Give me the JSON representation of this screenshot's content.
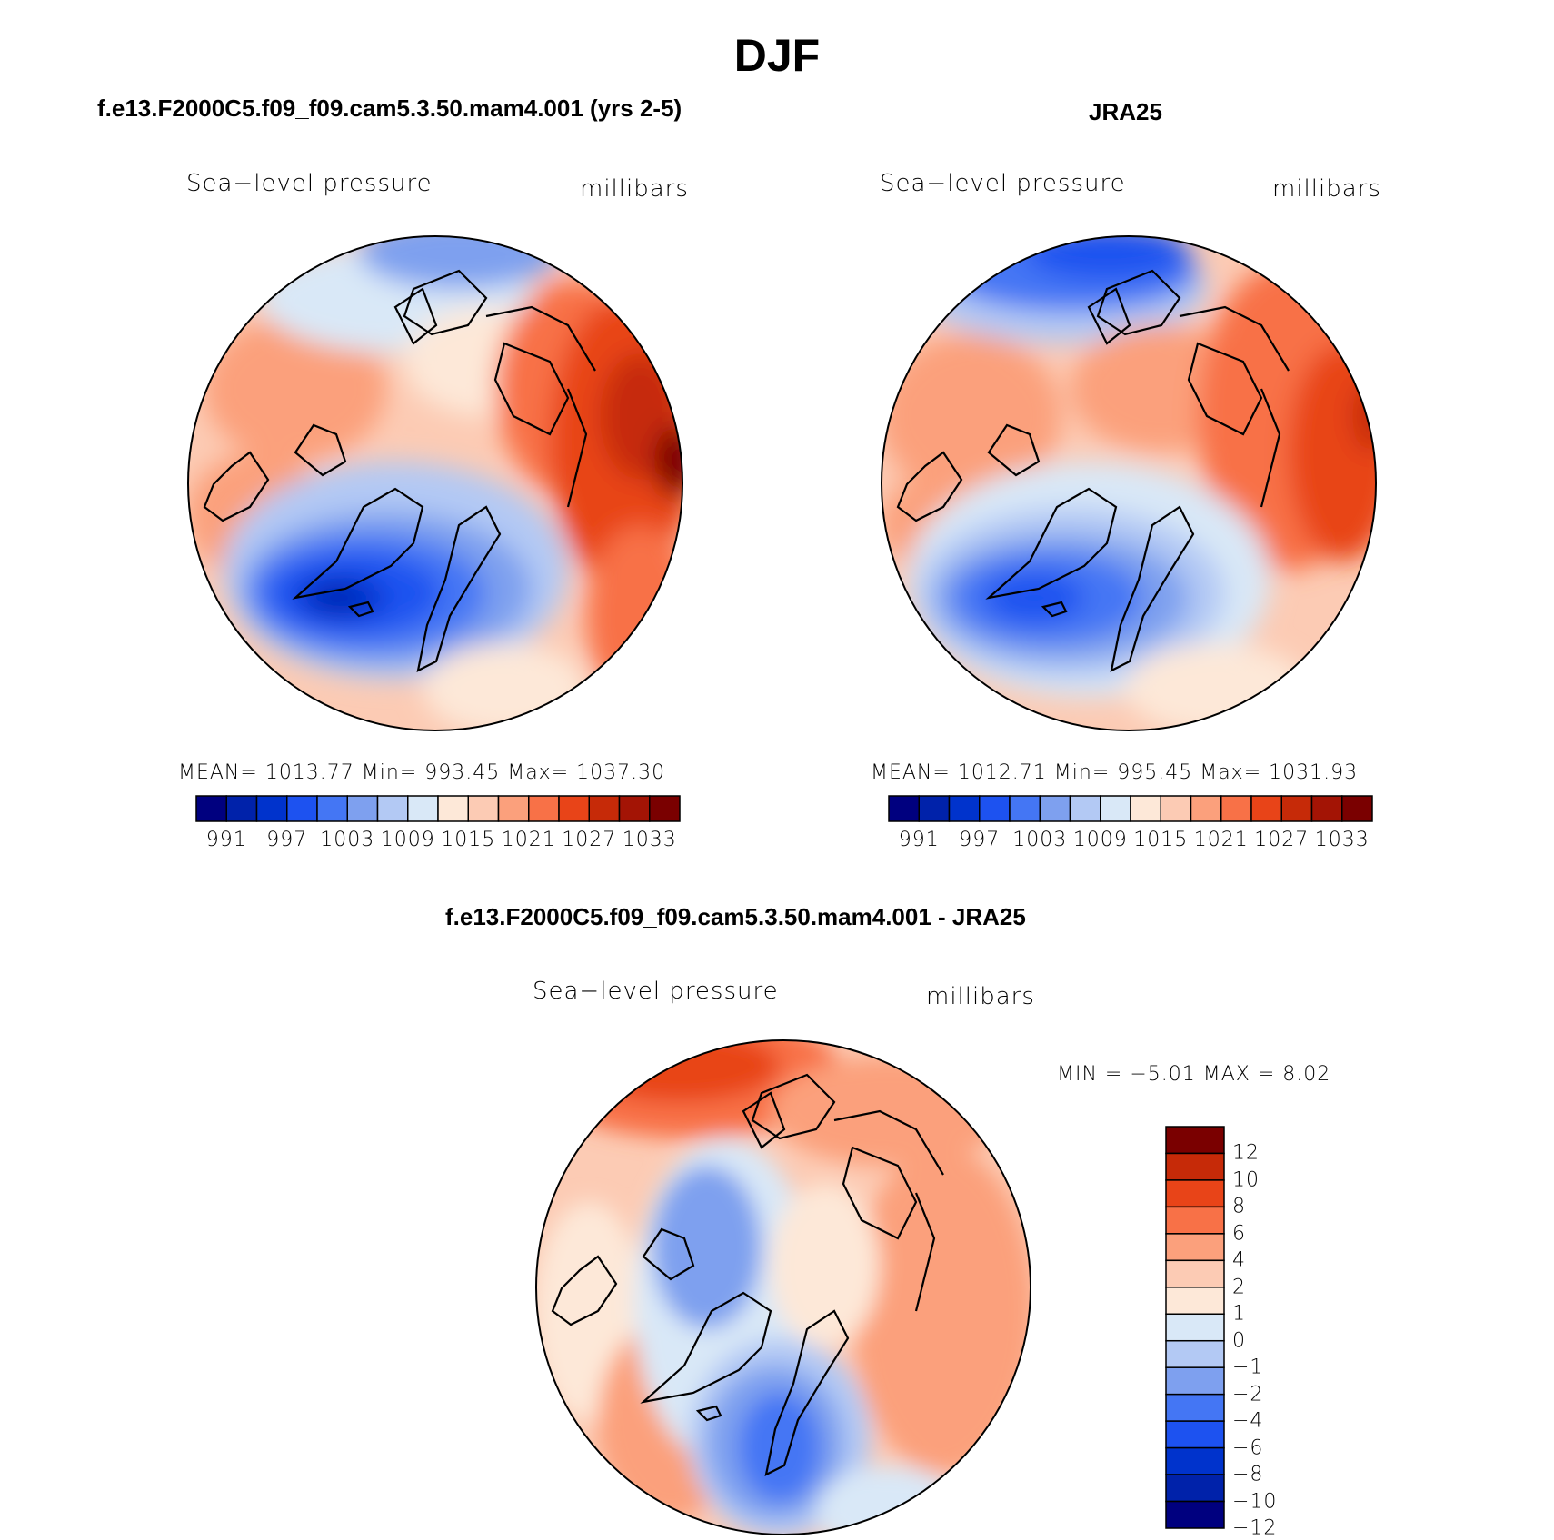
{
  "title": "DJF",
  "colors": {
    "abs_palette": [
      "#00007f",
      "#0022aa",
      "#0033cc",
      "#1d52f0",
      "#4476f4",
      "#7ea0ef",
      "#b3c9f4",
      "#d9e8f7",
      "#fde8d8",
      "#fccbb4",
      "#fba07c",
      "#f87147",
      "#e84418",
      "#c62a08",
      "#a31405",
      "#7a0000"
    ],
    "diff_palette": [
      "#00007f",
      "#0022aa",
      "#0033cc",
      "#1d52f0",
      "#4476f4",
      "#7ea0ef",
      "#b3c9f4",
      "#d9e8f7",
      "#fde8d8",
      "#fccbb4",
      "#fba07c",
      "#f87147",
      "#e84418",
      "#c62a08",
      "#7a0000"
    ]
  },
  "panels": [
    {
      "id": "model",
      "title": "f.e13.F2000C5.f09_f09.cam5.3.50.mam4.001 (yrs 2-5)",
      "variable": "Sea−level pressure",
      "units": "millibars",
      "stats": "MEAN=  1013.77    Min=  993.45    Max=  1037.30",
      "colorbar_ticks": [
        "991",
        "997",
        "1003",
        "1009",
        "1015",
        "1021",
        "1027",
        "1033"
      ]
    },
    {
      "id": "obs",
      "title": "JRA25",
      "variable": "Sea−level pressure",
      "units": "millibars",
      "stats": "MEAN=  1012.71    Min=  995.45    Max=  1031.93",
      "colorbar_ticks": [
        "991",
        "997",
        "1003",
        "1009",
        "1015",
        "1021",
        "1027",
        "1033"
      ]
    },
    {
      "id": "diff",
      "title": "f.e13.F2000C5.f09_f09.cam5.3.50.mam4.001 - JRA25",
      "variable": "Sea−level pressure",
      "units": "millibars",
      "stats": "MIN =    −5.01  MAX =      8.02",
      "colorbar_ticks": [
        "12",
        "10",
        "8",
        "6",
        "4",
        "2",
        "1",
        "0",
        "−1",
        "−2",
        "−4",
        "−6",
        "−8",
        "−10",
        "−12"
      ]
    }
  ],
  "chart_data": [
    {
      "type": "heatmap",
      "projection": "north-polar-stereographic",
      "title": "f.e13.F2000C5.f09_f09.cam5.3.50.mam4.001 (yrs 2-5)",
      "variable": "Sea-level pressure",
      "units": "millibars",
      "mean": 1013.77,
      "min": 993.45,
      "max": 1037.3,
      "contour_levels": [
        988,
        991,
        994,
        997,
        1000,
        1003,
        1006,
        1009,
        1012,
        1015,
        1018,
        1021,
        1024,
        1027,
        1030,
        1033,
        1036
      ],
      "colorbar_labels": [
        991,
        997,
        1003,
        1009,
        1015,
        1021,
        1027,
        1033
      ]
    },
    {
      "type": "heatmap",
      "projection": "north-polar-stereographic",
      "title": "JRA25",
      "variable": "Sea-level pressure",
      "units": "millibars",
      "mean": 1012.71,
      "min": 995.45,
      "max": 1031.93,
      "contour_levels": [
        988,
        991,
        994,
        997,
        1000,
        1003,
        1006,
        1009,
        1012,
        1015,
        1018,
        1021,
        1024,
        1027,
        1030,
        1033,
        1036
      ],
      "colorbar_labels": [
        991,
        997,
        1003,
        1009,
        1015,
        1021,
        1027,
        1033
      ]
    },
    {
      "type": "heatmap",
      "projection": "north-polar-stereographic",
      "title": "f.e13.F2000C5.f09_f09.cam5.3.50.mam4.001 - JRA25",
      "variable": "Sea-level pressure",
      "units": "millibars",
      "min": -5.01,
      "max": 8.02,
      "contour_levels": [
        -12,
        -10,
        -8,
        -6,
        -4,
        -2,
        -1,
        0,
        1,
        2,
        4,
        6,
        8,
        10,
        12
      ],
      "colorbar_labels": [
        12,
        10,
        8,
        6,
        4,
        2,
        1,
        0,
        -1,
        -2,
        -4,
        -6,
        -8,
        -10,
        -12
      ]
    }
  ]
}
